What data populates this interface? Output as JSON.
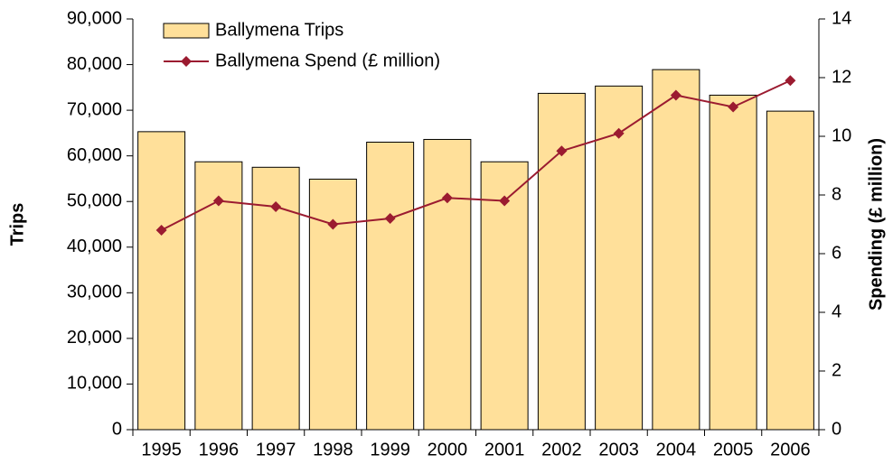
{
  "chart_data": {
    "type": "bar_line",
    "categories": [
      "1995",
      "1996",
      "1997",
      "1998",
      "1999",
      "2000",
      "2001",
      "2002",
      "2003",
      "2004",
      "2005",
      "2006"
    ],
    "series": [
      {
        "name": "Ballymena Trips",
        "type": "bar",
        "color": "#ffe09a",
        "values": [
          65300,
          58700,
          57500,
          54900,
          63000,
          63600,
          58700,
          73700,
          75300,
          78900,
          73300,
          69800
        ]
      },
      {
        "name": "Ballymena Spend (£ million)",
        "type": "line",
        "axis": "y2",
        "color": "#9b1b30",
        "values": [
          6.8,
          7.8,
          7.6,
          7.0,
          7.2,
          7.9,
          7.8,
          9.5,
          10.1,
          11.4,
          11.0,
          11.9
        ]
      }
    ],
    "ylabel": "Trips",
    "y2label": "Spending (£ million)",
    "ylim": [
      0,
      90000
    ],
    "yticks": [
      0,
      {
        "value": 10000,
        "label": "10,000"
      },
      {
        "value": 20000,
        "label": "20,000"
      },
      {
        "value": 30000,
        "label": "30,000"
      },
      {
        "value": 40000,
        "label": "40,000"
      },
      {
        "value": 50000,
        "label": "50,000"
      },
      {
        "value": 60000,
        "label": "60,000"
      },
      {
        "value": 70000,
        "label": "70,000"
      },
      {
        "value": 80000,
        "label": "80,000"
      },
      {
        "value": 90000,
        "label": "90,000"
      }
    ],
    "y2lim": [
      0,
      14
    ],
    "y2ticks": [
      0,
      2,
      4,
      6,
      8,
      10,
      12,
      14
    ],
    "legend": "upper left",
    "grid": false
  }
}
